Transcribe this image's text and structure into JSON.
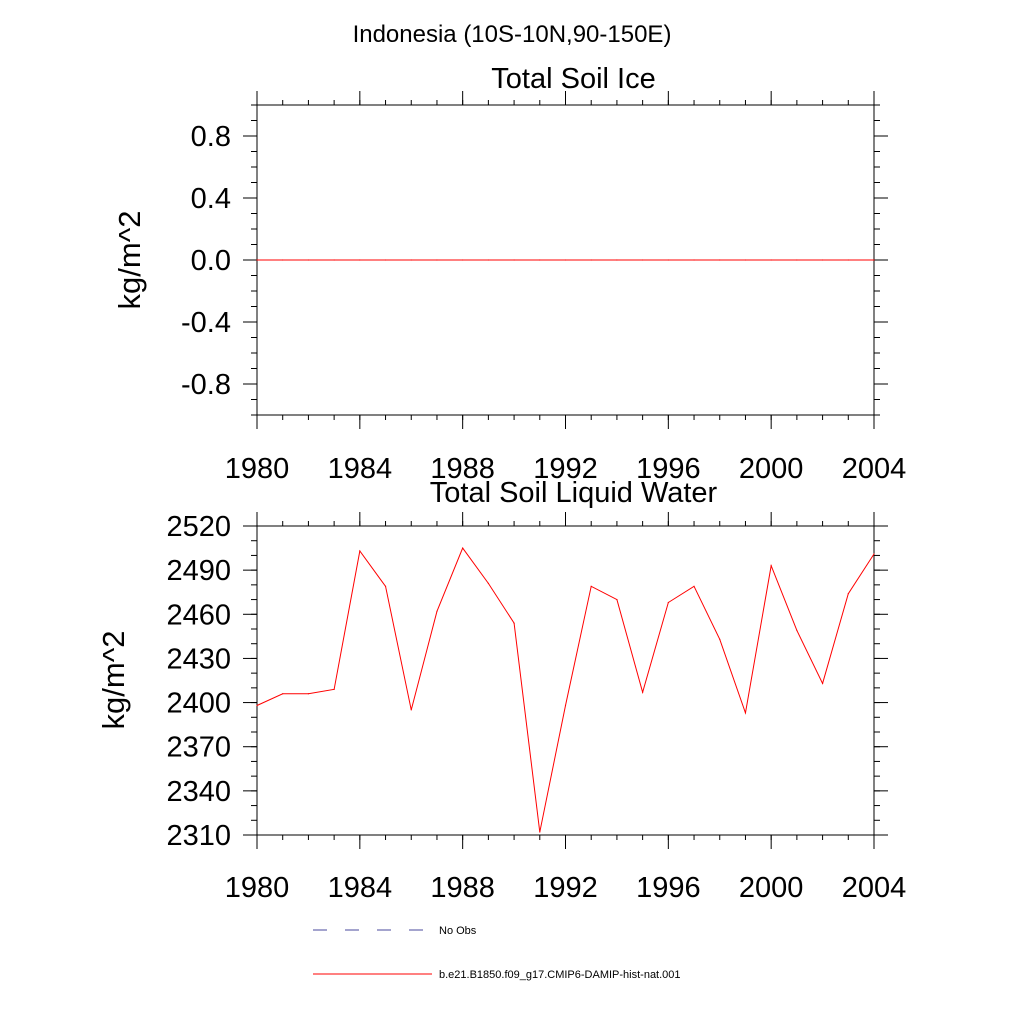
{
  "figure_title": "Indonesia (10S-10N,90-150E)",
  "chart_data": [
    {
      "type": "line",
      "title": "Total Soil Ice",
      "xlabel": "",
      "ylabel": "kg/m^2",
      "xlim": [
        1980,
        2004
      ],
      "ylim": [
        -1.0,
        1.0
      ],
      "x_ticks": [
        1980,
        1984,
        1988,
        1992,
        1996,
        2000,
        2004
      ],
      "x_tick_labels": [
        "1980",
        "1984",
        "1988",
        "1992",
        "1996",
        "2000",
        "2004"
      ],
      "y_ticks": [
        -0.8,
        -0.4,
        0.0,
        0.4,
        0.8
      ],
      "y_tick_labels": [
        "-0.8",
        "-0.4",
        "0.0",
        "0.4",
        "0.8"
      ],
      "grid": false,
      "series": [
        {
          "name": "b.e21.B1850.f09_g17.CMIP6-DAMIP-hist-nat.001",
          "color": "#ff0000",
          "x": [
            1980,
            1981,
            1982,
            1983,
            1984,
            1985,
            1986,
            1987,
            1988,
            1989,
            1990,
            1991,
            1992,
            1993,
            1994,
            1995,
            1996,
            1997,
            1998,
            1999,
            2000,
            2001,
            2002,
            2003,
            2004
          ],
          "values": [
            0,
            0,
            0,
            0,
            0,
            0,
            0,
            0,
            0,
            0,
            0,
            0,
            0,
            0,
            0,
            0,
            0,
            0,
            0,
            0,
            0,
            0,
            0,
            0,
            0
          ]
        }
      ]
    },
    {
      "type": "line",
      "title": "Total Soil Liquid Water",
      "xlabel": "",
      "ylabel": "kg/m^2",
      "xlim": [
        1980,
        2004
      ],
      "ylim": [
        2310,
        2520
      ],
      "x_ticks": [
        1980,
        1984,
        1988,
        1992,
        1996,
        2000,
        2004
      ],
      "x_tick_labels": [
        "1980",
        "1984",
        "1988",
        "1992",
        "1996",
        "2000",
        "2004"
      ],
      "y_ticks": [
        2310,
        2340,
        2370,
        2400,
        2430,
        2460,
        2490,
        2520
      ],
      "y_tick_labels": [
        "2310",
        "2340",
        "2370",
        "2400",
        "2430",
        "2460",
        "2490",
        "2520"
      ],
      "grid": false,
      "series": [
        {
          "name": "b.e21.B1850.f09_g17.CMIP6-DAMIP-hist-nat.001",
          "color": "#ff0000",
          "x": [
            1980,
            1981,
            1982,
            1983,
            1984,
            1985,
            1986,
            1987,
            1988,
            1989,
            1990,
            1991,
            1992,
            1993,
            1994,
            1995,
            1996,
            1997,
            1998,
            1999,
            2000,
            2001,
            2002,
            2003,
            2004
          ],
          "values": [
            2398,
            2406,
            2406,
            2409,
            2503,
            2479,
            2395,
            2462,
            2505,
            2481,
            2454,
            2312,
            2398,
            2479,
            2470,
            2407,
            2468,
            2479,
            2443,
            2393,
            2493,
            2449,
            2413,
            2474,
            2501
          ]
        }
      ]
    }
  ],
  "legend": {
    "placement": "bottom",
    "items": [
      {
        "label": "No Obs",
        "color": "#4a4a9e",
        "style": "dashed"
      },
      {
        "label": "b.e21.B1850.f09_g17.CMIP6-DAMIP-hist-nat.001",
        "color": "#ff0000",
        "style": "solid"
      }
    ]
  }
}
